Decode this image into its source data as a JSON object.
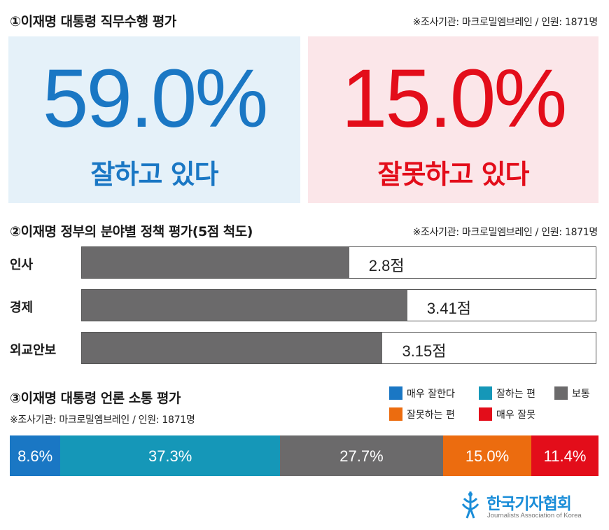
{
  "section1": {
    "title": "①이재명 대통령 직무수행 평가",
    "source": "※조사기관: 마크로밀엠브레인 / 인원: 1871명",
    "positive": {
      "value": "59.0%",
      "label": "잘하고 있다",
      "color": "#1a77c4"
    },
    "negative": {
      "value": "15.0%",
      "label": "잘못하고 있다",
      "color": "#e30d1a"
    }
  },
  "section2": {
    "title": "②이재명 정부의 분야별 정책 평가(5점 척도)",
    "source": "※조사기관: 마크로밀엠브레인 / 인원: 1871명"
  },
  "section3": {
    "title": "③이재명 대통령 언론 소통 평가",
    "source": "※조사기관: 마크로밀엠브레인 / 인원: 1871명"
  },
  "chart_data": [
    {
      "type": "bar",
      "categories": [
        "잘하고 있다",
        "잘못하고 있다"
      ],
      "values": [
        59.0,
        15.0
      ]
    },
    {
      "type": "bar",
      "orientation": "horizontal",
      "categories": [
        "인사",
        "경제",
        "외교안보"
      ],
      "values": [
        2.8,
        3.41,
        3.15
      ],
      "value_labels": [
        "2.8점",
        "3.41점",
        "3.15점"
      ],
      "xlim": [
        0,
        5
      ]
    },
    {
      "type": "bar",
      "stacked": true,
      "orientation": "horizontal",
      "categories": [
        "매우 잘한다",
        "잘하는 편",
        "보통",
        "잘못하는 편",
        "매우 잘못"
      ],
      "values": [
        8.6,
        37.3,
        27.7,
        15.0,
        11.4
      ],
      "value_labels": [
        "8.6%",
        "37.3%",
        "27.7%",
        "15.0%",
        "11.4%"
      ],
      "colors": [
        "#1a77c4",
        "#1597b8",
        "#6b6a6b",
        "#ec6c0f",
        "#e30d1a"
      ],
      "legend_position": "top-right"
    }
  ],
  "logo": {
    "name": "한국기자협회",
    "subtitle": "Journalists Association of Korea"
  }
}
